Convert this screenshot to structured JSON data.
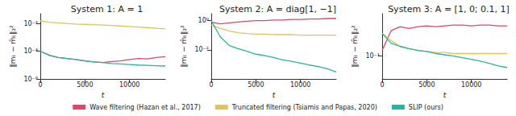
{
  "chart_data": [
    {
      "type": "line",
      "title": "System 1: A = 1",
      "x_label": "t",
      "y_label": "‖mₜ − m̂ₜ‖₂²",
      "log": "y",
      "grid": false,
      "legend": "bottom",
      "x": [
        0,
        1000,
        2000,
        3000,
        4000,
        5000,
        6000,
        7000,
        8000,
        9000,
        10000,
        11000,
        12000,
        13000,
        14000
      ],
      "xlim": [
        0,
        14000
      ],
      "xticks": [
        0,
        5000,
        10000
      ],
      "ylim": [
        1e-06,
        0.05
      ],
      "yticks": [
        {
          "value": 1e-06,
          "label": "10⁻⁶"
        },
        {
          "value": 0.0001,
          "label": "10⁻⁴"
        },
        {
          "value": 0.01,
          "label": "10⁻²"
        }
      ],
      "series": [
        {
          "name": "Wave filtering (Hazan et al., 2017)",
          "color": "#d94a64",
          "values": [
            0.0001,
            5e-05,
            3.5e-05,
            3e-05,
            2.5e-05,
            2e-05,
            1.7e-05,
            1.5e-05,
            1.8e-05,
            2e-05,
            2.5e-05,
            3e-05,
            2.8e-05,
            3.5e-05,
            4e-05
          ]
        },
        {
          "name": "Truncated filtering (Tsiamis and Papas, 2020)",
          "color": "#e2c25e",
          "values": [
            0.015,
            0.012,
            0.011,
            0.01,
            0.009,
            0.0085,
            0.008,
            0.0075,
            0.007,
            0.0065,
            0.006,
            0.0055,
            0.005,
            0.0045,
            0.004
          ]
        },
        {
          "name": "SLIP (ours)",
          "color": "#2ab3a0",
          "values": [
            0.0001,
            5e-05,
            3.5e-05,
            3e-05,
            2.5e-05,
            2e-05,
            1.7e-05,
            1.5e-05,
            1.3e-05,
            1.2e-05,
            1.1e-05,
            1e-05,
            9.5e-06,
            9e-06,
            8.5e-06
          ]
        }
      ]
    },
    {
      "type": "line",
      "title": "System 2: A = diag[1, −1]",
      "x_label": "t",
      "y_label": "‖mₜ − m̂ₜ‖₂²",
      "log": "y",
      "grid": false,
      "legend": "bottom",
      "x": [
        0,
        1000,
        2000,
        3000,
        4000,
        5000,
        6000,
        7000,
        8000,
        9000,
        10000,
        11000,
        12000,
        13000,
        14000
      ],
      "xlim": [
        0,
        14000
      ],
      "xticks": [
        0,
        5000,
        10000
      ],
      "ylim": [
        0.0001,
        3
      ],
      "yticks": [
        {
          "value": 0.01,
          "label": "10⁻²"
        },
        {
          "value": 1,
          "label": "10⁰"
        }
      ],
      "series": [
        {
          "name": "Wave filtering (Hazan et al., 2017)",
          "color": "#d94a64",
          "values": [
            0.8,
            0.6,
            0.7,
            0.8,
            0.9,
            1.0,
            1.0,
            1.1,
            1.1,
            1.2,
            1.2,
            1.3,
            1.3,
            1.4,
            1.4
          ]
        },
        {
          "name": "Truncated filtering (Tsiamis and Papas, 2020)",
          "color": "#e2c25e",
          "values": [
            0.5,
            0.3,
            0.2,
            0.15,
            0.13,
            0.12,
            0.12,
            0.11,
            0.11,
            0.11,
            0.1,
            0.1,
            0.1,
            0.1,
            0.1
          ]
        },
        {
          "name": "SLIP (ours)",
          "color": "#2ab3a0",
          "values": [
            1.0,
            0.08,
            0.02,
            0.012,
            0.008,
            0.005,
            0.004,
            0.003,
            0.002,
            0.0016,
            0.0012,
            0.0009,
            0.0007,
            0.0005,
            0.0003
          ]
        }
      ]
    },
    {
      "type": "line",
      "title": "System 3: A = [1, 0; 0.1, 1]",
      "x_label": "t",
      "y_label": "‖mₜ − m̂ₜ‖₂²",
      "log": "y",
      "grid": false,
      "legend": "bottom",
      "x": [
        0,
        1000,
        2000,
        3000,
        4000,
        5000,
        6000,
        7000,
        8000,
        9000,
        10000,
        11000,
        12000,
        13000,
        14000
      ],
      "xlim": [
        0,
        14000
      ],
      "xticks": [
        0,
        5000,
        10000
      ],
      "ylim": [
        0.02,
        2
      ],
      "yticks": [
        {
          "value": 0.1,
          "label": "10⁻¹"
        }
      ],
      "series": [
        {
          "name": "Wave filtering (Hazan et al., 2017)",
          "color": "#d94a64",
          "values": [
            0.15,
            0.6,
            0.8,
            0.7,
            0.8,
            0.85,
            0.8,
            0.85,
            0.9,
            0.9,
            0.85,
            0.9,
            0.9,
            0.85,
            0.85
          ]
        },
        {
          "name": "Truncated filtering (Tsiamis and Papas, 2020)",
          "color": "#e2c25e",
          "values": [
            0.5,
            0.3,
            0.2,
            0.17,
            0.15,
            0.14,
            0.13,
            0.13,
            0.12,
            0.12,
            0.12,
            0.12,
            0.12,
            0.12,
            0.12
          ]
        },
        {
          "name": "SLIP (ours)",
          "color": "#2ab3a0",
          "values": [
            0.5,
            0.25,
            0.2,
            0.17,
            0.15,
            0.14,
            0.12,
            0.11,
            0.1,
            0.09,
            0.08,
            0.07,
            0.06,
            0.05,
            0.045
          ]
        }
      ]
    }
  ]
}
